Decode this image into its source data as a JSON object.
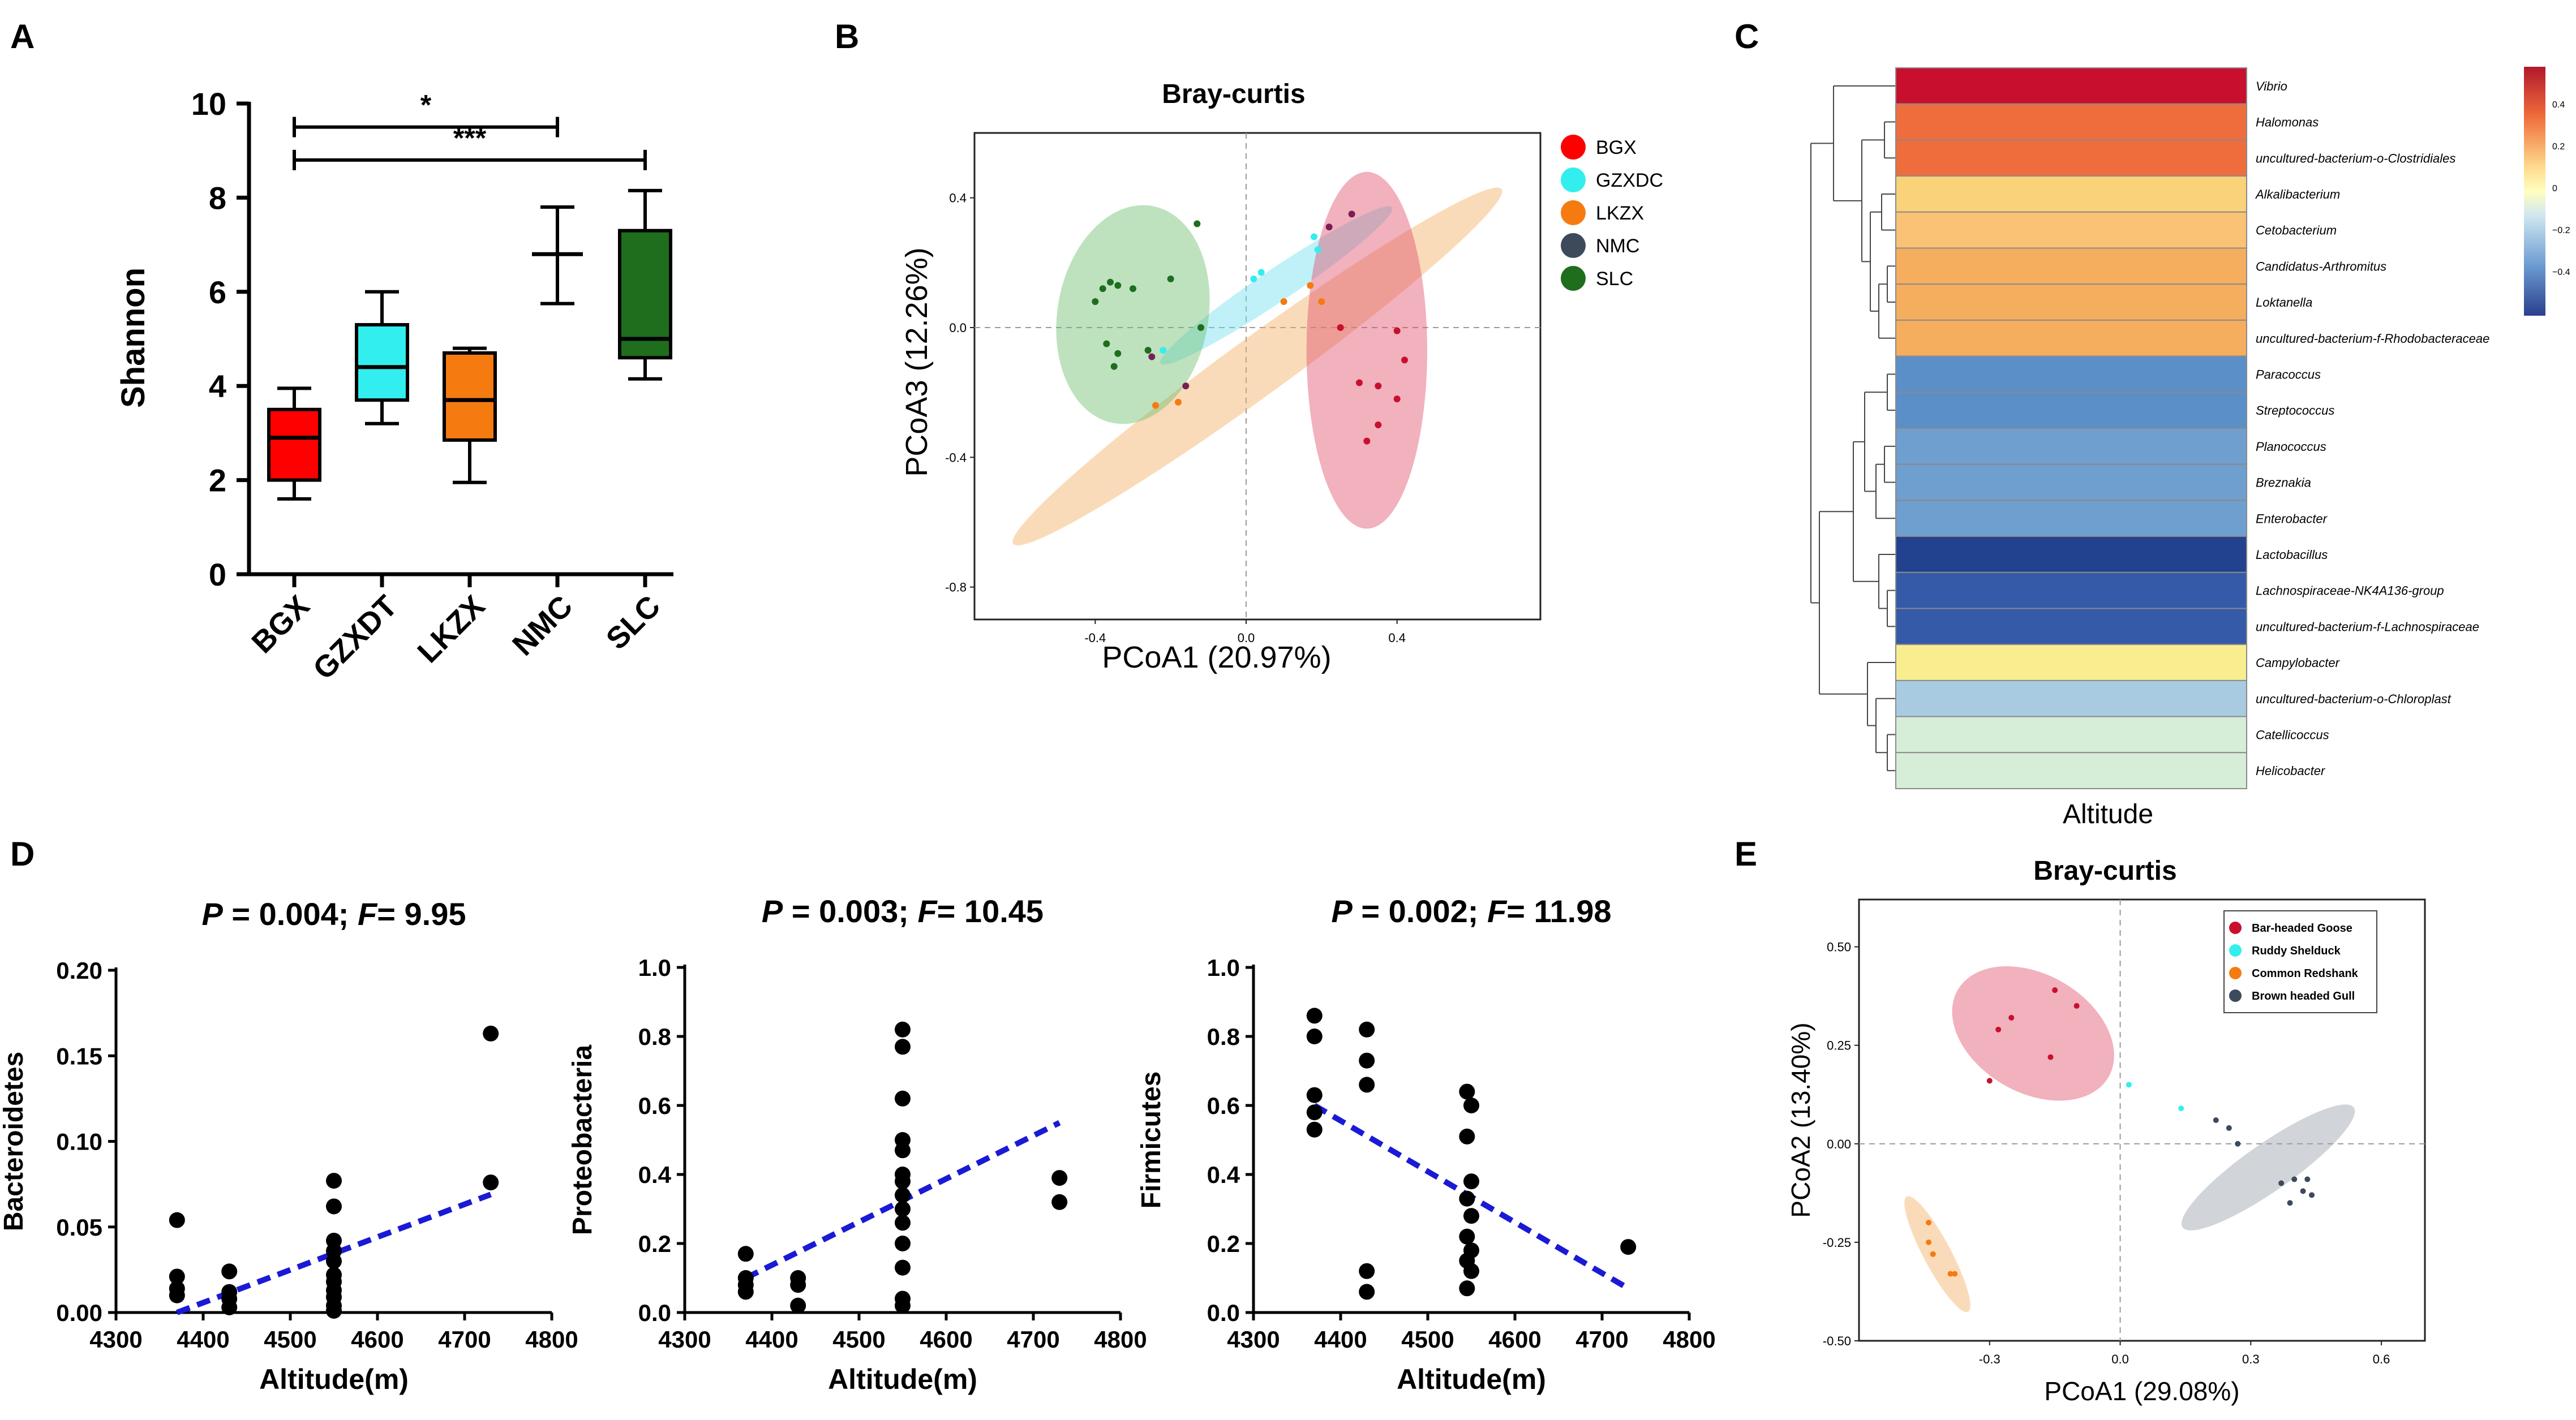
{
  "colors": {
    "bgx": "#ff0000",
    "gzxdc": "#33eeee",
    "lkzx": "#f57a10",
    "nmc": "#3d4a5c",
    "slc": "#1e6e1e",
    "ell_pink": "#e0536d",
    "ell_cyan": "#74e0f0",
    "ell_orange": "#f5b063",
    "ell_green": "#6fbf6f",
    "ell_grey": "#9aa0aa",
    "trend": "#1a1ad6",
    "heat_labels_colors": [
      "#c8102e",
      "#ef6d3c",
      "#ef6d3c",
      "#f9d27a",
      "#f9c275",
      "#f5ad5e",
      "#f5ad5e",
      "#f5ad5e",
      "#5b8fc8",
      "#5b8fc8",
      "#6f9fcf",
      "#6f9fcf",
      "#6f9fcf",
      "#22418e",
      "#355aa8",
      "#355aa8",
      "#f9ee8f",
      "#a9cbe2",
      "#d6eed8",
      "#d6eed8"
    ]
  },
  "chart_data": [
    {
      "panel": "A",
      "type": "box",
      "ylabel": "Shannon",
      "ylim": [
        0,
        10
      ],
      "yticks": [
        "0",
        "2",
        "4",
        "6",
        "8",
        "10"
      ],
      "categories": [
        "BGX",
        "GZXDT",
        "LKZX",
        "NMC",
        "SLC"
      ],
      "boxes": [
        {
          "name": "BGX",
          "min": 1.6,
          "q1": 2.0,
          "median": 2.9,
          "q3": 3.5,
          "max": 3.95
        },
        {
          "name": "GZXDT",
          "min": 3.2,
          "q1": 3.7,
          "median": 4.4,
          "q3": 5.3,
          "max": 6.0
        },
        {
          "name": "LKZX",
          "min": 1.95,
          "q1": 2.85,
          "median": 3.7,
          "q3": 4.7,
          "max": 4.8
        },
        {
          "name": "NMC",
          "min": 5.75,
          "q1": 6.8,
          "median": 6.8,
          "q3": 6.8,
          "max": 7.8
        },
        {
          "name": "SLC",
          "min": 4.15,
          "q1": 4.6,
          "median": 5.0,
          "q3": 7.3,
          "max": 8.15
        }
      ],
      "significance": [
        {
          "from": "BGX",
          "to": "NMC",
          "label": "*",
          "y": 9.5
        },
        {
          "from": "BGX",
          "to": "SLC",
          "label": "***",
          "y": 8.8
        }
      ]
    },
    {
      "panel": "B",
      "type": "scatter",
      "title": "Bray-curtis",
      "xlabel": "PCoA1 (20.97%)",
      "ylabel": "PCoA3 (12.26%)",
      "xlim": [
        -0.72,
        0.78
      ],
      "ylim": [
        -0.9,
        0.6
      ],
      "xticks": [
        "-0.4",
        "0.0",
        "0.4"
      ],
      "yticks": [
        "0.4",
        "0.0",
        "-0.4",
        "-0.8"
      ],
      "legend": [
        "BGX",
        "GZXDC",
        "LKZX",
        "NMC",
        "SLC"
      ],
      "series": [
        {
          "name": "BGX",
          "points": [
            [
              0.25,
              0.0
            ],
            [
              0.4,
              -0.01
            ],
            [
              0.42,
              -0.1
            ],
            [
              0.3,
              -0.17
            ],
            [
              0.35,
              -0.18
            ],
            [
              0.4,
              -0.22
            ],
            [
              0.35,
              -0.3
            ],
            [
              0.32,
              -0.35
            ]
          ]
        },
        {
          "name": "GZXDC",
          "points": [
            [
              0.02,
              0.15
            ],
            [
              0.04,
              0.17
            ],
            [
              0.18,
              0.28
            ],
            [
              0.19,
              0.24
            ],
            [
              -0.22,
              -0.07
            ]
          ]
        },
        {
          "name": "LKZX",
          "points": [
            [
              0.17,
              0.13
            ],
            [
              0.2,
              0.08
            ],
            [
              0.1,
              0.08
            ],
            [
              -0.18,
              -0.23
            ],
            [
              -0.24,
              -0.24
            ]
          ]
        },
        {
          "name": "NMC",
          "points": [
            [
              0.22,
              0.31
            ],
            [
              0.28,
              0.35
            ],
            [
              -0.25,
              -0.09
            ],
            [
              -0.16,
              -0.18
            ]
          ]
        },
        {
          "name": "SLC",
          "points": [
            [
              -0.13,
              0.32
            ],
            [
              -0.2,
              0.15
            ],
            [
              -0.12,
              0.0
            ],
            [
              -0.38,
              0.12
            ],
            [
              -0.34,
              0.13
            ],
            [
              -0.36,
              0.14
            ],
            [
              -0.4,
              0.08
            ],
            [
              -0.3,
              0.12
            ],
            [
              -0.37,
              -0.05
            ],
            [
              -0.34,
              -0.08
            ],
            [
              -0.35,
              -0.12
            ],
            [
              -0.26,
              -0.07
            ]
          ]
        }
      ],
      "ellipses": [
        {
          "name": "LKZX",
          "cx": 0.03,
          "cy": -0.12,
          "rx": 0.8,
          "ry": 0.09,
          "angle_deg": 36
        },
        {
          "name": "GZXDC",
          "cx": 0.08,
          "cy": 0.13,
          "rx": 0.37,
          "ry": 0.05,
          "angle_deg": 34
        },
        {
          "name": "SLC",
          "cx": -0.3,
          "cy": 0.04,
          "rx": 0.2,
          "ry": 0.34,
          "angle_deg": -10
        },
        {
          "name": "BGX",
          "cx": 0.32,
          "cy": -0.07,
          "rx": 0.16,
          "ry": 0.55,
          "angle_deg": 0
        }
      ]
    },
    {
      "panel": "C",
      "type": "heatmap",
      "xlabel": "Altitude",
      "rows": [
        "Vibrio",
        "Halomonas",
        "uncultured-bacterium-o-Clostridiales",
        "Alkalibacterium",
        "Cetobacterium",
        "Candidatus-Arthromitus",
        "Loktanella",
        "uncultured-bacterium-f-Rhodobacteraceae",
        "Paracoccus",
        "Streptococcus",
        "Planococcus",
        "Breznakia",
        "Enterobacter",
        "Lactobacillus",
        "Lachnospiraceae-NK4A136-group",
        "uncultured-bacterium-f-Lachnospiraceae",
        "Campylobacter",
        "uncultured-bacterium-o-Chloroplast",
        "Catellicoccus",
        "Helicobacter"
      ],
      "values": [
        0.5,
        0.3,
        0.3,
        0.15,
        0.17,
        0.2,
        0.2,
        0.2,
        -0.3,
        -0.3,
        -0.27,
        -0.27,
        -0.27,
        -0.48,
        -0.4,
        -0.4,
        0.05,
        -0.12,
        -0.06,
        -0.06
      ],
      "colorbar_ticks": [
        "0.4",
        "0.2",
        "0",
        "−0.2",
        "−0.4"
      ]
    },
    {
      "panel": "D1",
      "type": "scatter",
      "title_p": "P",
      "title_p_text": " = 0.004; ",
      "title_f": "F",
      "title_f_text": "= 9.95",
      "xlabel": "Altitude(m)",
      "ylabel": "Bacteroidetes",
      "xlim": [
        4300,
        4800
      ],
      "ylim": [
        0,
        0.2
      ],
      "xticks": [
        "4300",
        "4400",
        "4500",
        "4600",
        "4700",
        "4800"
      ],
      "yticks": [
        "0.00",
        "0.05",
        "0.10",
        "0.15",
        "0.20"
      ],
      "points": [
        [
          4370,
          0.054
        ],
        [
          4370,
          0.021
        ],
        [
          4370,
          0.014
        ],
        [
          4370,
          0.01
        ],
        [
          4430,
          0.024
        ],
        [
          4430,
          0.012
        ],
        [
          4430,
          0.008
        ],
        [
          4430,
          0.003
        ],
        [
          4550,
          0.077
        ],
        [
          4550,
          0.062
        ],
        [
          4550,
          0.042
        ],
        [
          4550,
          0.036
        ],
        [
          4550,
          0.03
        ],
        [
          4550,
          0.022
        ],
        [
          4550,
          0.018
        ],
        [
          4550,
          0.013
        ],
        [
          4550,
          0.009
        ],
        [
          4550,
          0.004
        ],
        [
          4550,
          0.001
        ],
        [
          4730,
          0.163
        ],
        [
          4730,
          0.076
        ]
      ],
      "trend": [
        [
          4370,
          0.0
        ],
        [
          4730,
          0.069
        ]
      ]
    },
    {
      "panel": "D2",
      "type": "scatter",
      "title_p": "P",
      "title_p_text": " = 0.003; ",
      "title_f": "F",
      "title_f_text": "= 10.45",
      "xlabel": "Altitude(m)",
      "ylabel": "Proteobacteria",
      "xlim": [
        4300,
        4800
      ],
      "ylim": [
        0,
        1.0
      ],
      "xticks": [
        "4300",
        "4400",
        "4500",
        "4600",
        "4700",
        "4800"
      ],
      "yticks": [
        "0.0",
        "0.2",
        "0.4",
        "0.6",
        "0.8",
        "1.0"
      ],
      "points": [
        [
          4370,
          0.17
        ],
        [
          4370,
          0.1
        ],
        [
          4370,
          0.08
        ],
        [
          4370,
          0.06
        ],
        [
          4430,
          0.1
        ],
        [
          4430,
          0.08
        ],
        [
          4430,
          0.02
        ],
        [
          4550,
          0.82
        ],
        [
          4550,
          0.77
        ],
        [
          4550,
          0.62
        ],
        [
          4550,
          0.5
        ],
        [
          4550,
          0.47
        ],
        [
          4550,
          0.4
        ],
        [
          4550,
          0.38
        ],
        [
          4550,
          0.34
        ],
        [
          4550,
          0.3
        ],
        [
          4550,
          0.26
        ],
        [
          4550,
          0.2
        ],
        [
          4550,
          0.13
        ],
        [
          4550,
          0.04
        ],
        [
          4550,
          0.02
        ],
        [
          4730,
          0.39
        ],
        [
          4730,
          0.32
        ]
      ],
      "trend": [
        [
          4370,
          0.1
        ],
        [
          4730,
          0.55
        ]
      ]
    },
    {
      "panel": "D3",
      "type": "scatter",
      "title_p": "P",
      "title_p_text": " = 0.002; ",
      "title_f": "F",
      "title_f_text": "= 11.98",
      "xlabel": "Altitude(m)",
      "ylabel": "Firmicutes",
      "xlim": [
        4300,
        4800
      ],
      "ylim": [
        0,
        1.0
      ],
      "xticks": [
        "4300",
        "4400",
        "4500",
        "4600",
        "4700",
        "4800"
      ],
      "yticks": [
        "0.0",
        "0.2",
        "0.4",
        "0.6",
        "0.8",
        "1.0"
      ],
      "points": [
        [
          4370,
          0.86
        ],
        [
          4370,
          0.8
        ],
        [
          4370,
          0.63
        ],
        [
          4370,
          0.58
        ],
        [
          4370,
          0.53
        ],
        [
          4430,
          0.82
        ],
        [
          4430,
          0.73
        ],
        [
          4430,
          0.66
        ],
        [
          4430,
          0.12
        ],
        [
          4430,
          0.06
        ],
        [
          4545,
          0.64
        ],
        [
          4550,
          0.6
        ],
        [
          4545,
          0.51
        ],
        [
          4550,
          0.38
        ],
        [
          4545,
          0.33
        ],
        [
          4550,
          0.28
        ],
        [
          4545,
          0.22
        ],
        [
          4550,
          0.18
        ],
        [
          4545,
          0.15
        ],
        [
          4550,
          0.12
        ],
        [
          4545,
          0.07
        ],
        [
          4730,
          0.19
        ]
      ],
      "trend": [
        [
          4370,
          0.6
        ],
        [
          4730,
          0.07
        ]
      ]
    },
    {
      "panel": "E",
      "type": "scatter",
      "title": "Bray-curtis",
      "xlabel": "PCoA1 (29.08%)",
      "ylabel": "PCoA2 (13.40%)",
      "xlim": [
        -0.6,
        0.7
      ],
      "ylim": [
        -0.5,
        0.62
      ],
      "xticks": [
        "-0.3",
        "0.0",
        "0.3",
        "0.6"
      ],
      "yticks": [
        "0.50",
        "0.25",
        "0.00",
        "-0.25",
        "-0.50"
      ],
      "legend": [
        "Bar-headed Goose",
        "Ruddy Shelduck",
        "Common Redshank",
        "Brown headed Gull"
      ],
      "series": [
        {
          "name": "Bar-headed Goose",
          "points": [
            [
              -0.3,
              0.16
            ],
            [
              -0.28,
              0.29
            ],
            [
              -0.25,
              0.32
            ],
            [
              -0.16,
              0.22
            ],
            [
              -0.15,
              0.39
            ],
            [
              -0.1,
              0.35
            ]
          ]
        },
        {
          "name": "Ruddy Shelduck",
          "points": [
            [
              0.02,
              0.15
            ],
            [
              0.14,
              0.09
            ]
          ]
        },
        {
          "name": "Common Redshank",
          "points": [
            [
              -0.44,
              -0.2
            ],
            [
              -0.44,
              -0.25
            ],
            [
              -0.43,
              -0.28
            ],
            [
              -0.39,
              -0.33
            ],
            [
              -0.38,
              -0.33
            ]
          ]
        },
        {
          "name": "Brown headed Gull",
          "points": [
            [
              0.22,
              0.06
            ],
            [
              0.25,
              0.04
            ],
            [
              0.27,
              0.0
            ],
            [
              0.37,
              -0.1
            ],
            [
              0.39,
              -0.15
            ],
            [
              0.4,
              -0.09
            ],
            [
              0.42,
              -0.12
            ],
            [
              0.43,
              -0.09
            ],
            [
              0.44,
              -0.13
            ]
          ]
        }
      ],
      "ellipses": [
        {
          "name": "Bar-headed Goose",
          "cx": -0.2,
          "cy": 0.28,
          "rx": 0.2,
          "ry": 0.15,
          "angle_deg": -30
        },
        {
          "name": "Common Redshank",
          "cx": -0.42,
          "cy": -0.28,
          "rx": 0.15,
          "ry": 0.035,
          "angle_deg": -62
        },
        {
          "name": "Brown headed Gull",
          "cx": 0.34,
          "cy": -0.06,
          "rx": 0.24,
          "ry": 0.06,
          "angle_deg": 35
        }
      ]
    }
  ],
  "panel_labels": [
    "A",
    "B",
    "C",
    "D",
    "E"
  ]
}
